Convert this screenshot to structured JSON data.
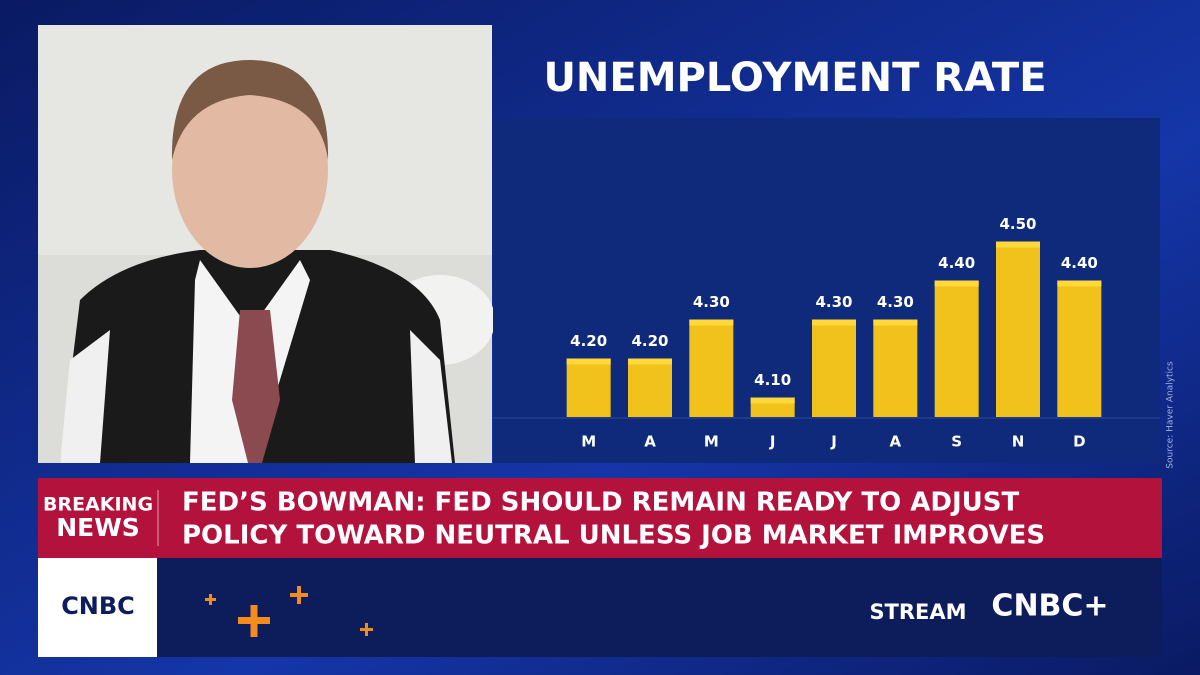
{
  "chart_data": {
    "type": "bar",
    "title": "UNEMPLOYMENT RATE",
    "categories": [
      "M",
      "A",
      "M",
      "J",
      "J",
      "A",
      "S",
      "N",
      "D"
    ],
    "values": [
      4.2,
      4.2,
      4.3,
      4.1,
      4.3,
      4.3,
      4.4,
      4.5,
      4.4
    ],
    "value_labels": [
      "4.20",
      "4.20",
      "4.30",
      "4.10",
      "4.30",
      "4.30",
      "4.40",
      "4.50",
      "4.40"
    ],
    "color": "#f0c21b",
    "ylim": [
      4.05,
      4.8
    ],
    "source": "Source: Haver Analytics"
  },
  "breaking": [
    "BREAKING",
    "NEWS"
  ],
  "headline": [
    "FED’S BOWMAN: FED SHOULD REMAIN READY TO ADJUST",
    "POLICY TOWARD NEUTRAL UNLESS JOB MARKET IMPROVES"
  ],
  "logo": "CNBC",
  "stream": "STREAM",
  "stream_logo": "CNBC+"
}
